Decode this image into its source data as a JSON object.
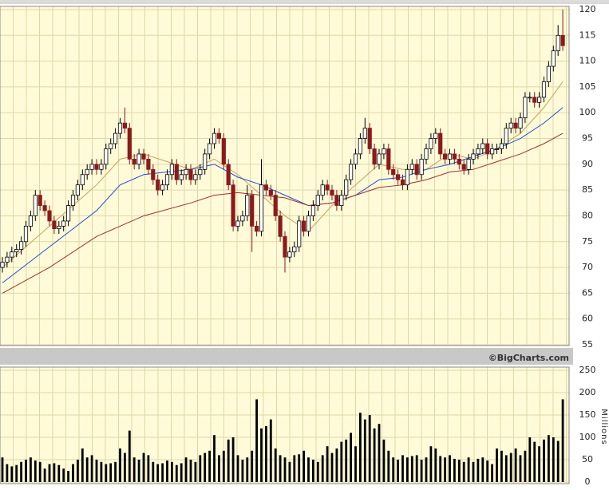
{
  "chart_data": [
    {
      "type": "candlestick",
      "open": [
        70,
        71,
        72,
        73,
        73.5,
        75,
        78,
        80,
        84,
        82,
        81,
        79,
        77.5,
        78,
        79,
        82,
        84,
        86,
        88,
        89,
        90,
        89,
        90,
        93,
        94,
        96,
        98,
        97,
        91,
        90,
        92,
        91,
        89,
        87,
        85,
        86,
        88,
        90,
        87,
        88,
        89,
        87,
        88,
        89,
        92,
        94,
        96,
        95,
        90,
        86,
        78,
        79,
        80,
        84,
        78,
        77,
        86,
        85,
        84,
        80,
        76,
        72,
        73,
        74,
        79,
        77,
        80,
        82,
        84,
        86,
        85,
        84,
        82,
        84,
        87,
        90,
        92,
        95,
        97,
        93,
        90,
        92,
        93,
        89,
        88,
        87,
        86,
        89,
        90,
        88,
        91,
        93,
        95,
        96,
        92,
        91,
        92,
        91,
        90,
        89,
        91,
        92,
        93,
        94,
        92,
        93,
        93,
        94,
        97,
        98,
        97,
        99,
        103,
        103,
        102,
        103,
        106,
        109,
        112,
        115
      ],
      "high": [
        72,
        73,
        74,
        74.5,
        76,
        79,
        81,
        85,
        85,
        83,
        82,
        80,
        79,
        80,
        83,
        85,
        87,
        89,
        90,
        91,
        91,
        91,
        94,
        95,
        97,
        99,
        101,
        98,
        92,
        93,
        93,
        92,
        90,
        88,
        87,
        89,
        91,
        91,
        89,
        90,
        90,
        89,
        90,
        93,
        95,
        97,
        97,
        96,
        91,
        87,
        80,
        81,
        86,
        85,
        79,
        91,
        87,
        86,
        85,
        81,
        77,
        74,
        75,
        80,
        80,
        81,
        83,
        85,
        87,
        87,
        86,
        85,
        85,
        88,
        91,
        93,
        96,
        99,
        98,
        94,
        93,
        94,
        94,
        90,
        89,
        88,
        90,
        91,
        91,
        92,
        94,
        96,
        97,
        97,
        93,
        93,
        93,
        92,
        91,
        92,
        93,
        94,
        95,
        95,
        94,
        94,
        95,
        98,
        99,
        99,
        100,
        104,
        104,
        104,
        104,
        107,
        110,
        113,
        117,
        120
      ],
      "low": [
        69,
        70,
        71,
        72,
        72.5,
        74,
        77,
        79,
        81,
        80,
        78,
        76.5,
        76.5,
        77,
        78,
        81,
        83,
        85,
        87,
        88,
        88,
        88,
        89,
        92,
        93,
        95,
        96,
        90,
        89,
        89,
        90,
        88,
        86,
        84,
        84,
        85,
        87,
        86,
        86,
        87,
        86,
        86,
        87,
        88,
        91,
        93,
        94,
        89,
        85,
        77,
        77,
        78,
        79,
        73,
        76,
        76,
        84,
        83,
        79,
        75,
        69,
        71,
        72,
        73,
        76,
        76,
        79,
        81,
        83,
        84,
        83,
        81,
        81,
        83,
        86,
        89,
        91,
        94,
        92,
        89,
        89,
        91,
        88,
        87,
        86,
        85,
        85,
        88,
        87,
        87,
        90,
        92,
        94,
        91,
        90,
        90,
        90,
        89,
        88,
        88,
        90,
        91,
        92,
        91,
        91,
        92,
        92,
        93,
        96,
        96,
        96,
        98,
        102,
        101,
        101,
        102,
        105,
        108,
        111,
        112
      ],
      "close": [
        71,
        72,
        73,
        73.5,
        75,
        78,
        80,
        84,
        82,
        81,
        79,
        77.5,
        78,
        79,
        82,
        84,
        86,
        88,
        89,
        90,
        89,
        90,
        93,
        94,
        96,
        98,
        97,
        91,
        90,
        92,
        91,
        89,
        87,
        85,
        86,
        88,
        90,
        87,
        88,
        89,
        87,
        88,
        89,
        92,
        94,
        96,
        95,
        90,
        86,
        78,
        79,
        80,
        84,
        78,
        77,
        86,
        85,
        84,
        80,
        76,
        72,
        73,
        74,
        79,
        77,
        80,
        82,
        84,
        86,
        85,
        84,
        82,
        84,
        87,
        90,
        92,
        95,
        97,
        93,
        90,
        92,
        93,
        89,
        88,
        87,
        86,
        89,
        90,
        88,
        91,
        93,
        95,
        96,
        92,
        91,
        92,
        91,
        90,
        89,
        91,
        92,
        93,
        94,
        92,
        93,
        93,
        94,
        97,
        98,
        97,
        99,
        103,
        103,
        102,
        103,
        106,
        109,
        112,
        115,
        113
      ],
      "up_color": "#ffffff",
      "down_color": "#8b1a1a",
      "overlays": [
        {
          "color": "#c8a060",
          "x": [
            0,
            10,
            20,
            25,
            30,
            40,
            45,
            50,
            55,
            60,
            65,
            70,
            75,
            80,
            85,
            90,
            95,
            100,
            105,
            110,
            115,
            119
          ],
          "values": [
            70,
            78,
            86,
            91,
            92,
            89,
            91,
            88,
            84,
            80,
            77,
            82,
            86,
            90,
            89,
            89,
            92,
            91,
            93,
            96,
            101,
            106
          ]
        },
        {
          "color": "#1f4fd0",
          "x": [
            0,
            10,
            20,
            25,
            30,
            35,
            40,
            45,
            50,
            55,
            60,
            65,
            70,
            75,
            80,
            85,
            90,
            95,
            100,
            105,
            110,
            115,
            119
          ],
          "values": [
            67,
            74,
            81,
            86,
            88,
            88.5,
            89,
            90,
            87.5,
            86,
            84,
            82,
            82.5,
            84,
            87,
            87.5,
            89,
            90,
            91.5,
            93,
            95,
            98,
            101
          ]
        },
        {
          "color": "#a03030",
          "x": [
            0,
            10,
            20,
            30,
            40,
            45,
            50,
            55,
            60,
            65,
            70,
            75,
            80,
            85,
            90,
            95,
            100,
            105,
            110,
            115,
            119
          ],
          "values": [
            65,
            70,
            76,
            80,
            82.5,
            84,
            84.5,
            84,
            83.5,
            82,
            82.5,
            84,
            85.5,
            86,
            87,
            88.5,
            89,
            90.5,
            92,
            94,
            96
          ]
        }
      ],
      "ylim": [
        55,
        120
      ],
      "yticks": [
        55,
        60,
        65,
        70,
        75,
        80,
        85,
        90,
        95,
        100,
        105,
        110,
        115,
        120
      ],
      "grid": true,
      "watermark": "©BigCharts.com"
    },
    {
      "type": "bar",
      "values": [
        55,
        40,
        35,
        38,
        45,
        50,
        55,
        48,
        45,
        30,
        40,
        42,
        38,
        30,
        25,
        40,
        50,
        75,
        55,
        60,
        50,
        45,
        40,
        42,
        45,
        75,
        65,
        115,
        55,
        50,
        65,
        60,
        45,
        40,
        42,
        48,
        45,
        38,
        42,
        55,
        50,
        45,
        60,
        65,
        70,
        105,
        60,
        70,
        95,
        100,
        60,
        50,
        55,
        70,
        185,
        120,
        125,
        140,
        75,
        60,
        55,
        45,
        60,
        62,
        70,
        55,
        50,
        45,
        60,
        80,
        65,
        75,
        90,
        95,
        110,
        80,
        155,
        140,
        150,
        120,
        130,
        95,
        70,
        55,
        50,
        60,
        55,
        58,
        60,
        50,
        55,
        80,
        75,
        58,
        55,
        60,
        52,
        50,
        45,
        55,
        45,
        52,
        55,
        48,
        40,
        75,
        70,
        60,
        65,
        75,
        60,
        70,
        100,
        90,
        80,
        95,
        105,
        100,
        92,
        185
      ],
      "color": "#000000",
      "ylim": [
        0,
        250
      ],
      "yticks": [
        0,
        50,
        100,
        150,
        200,
        250
      ],
      "grid": true,
      "ylabel": "Millions"
    }
  ]
}
